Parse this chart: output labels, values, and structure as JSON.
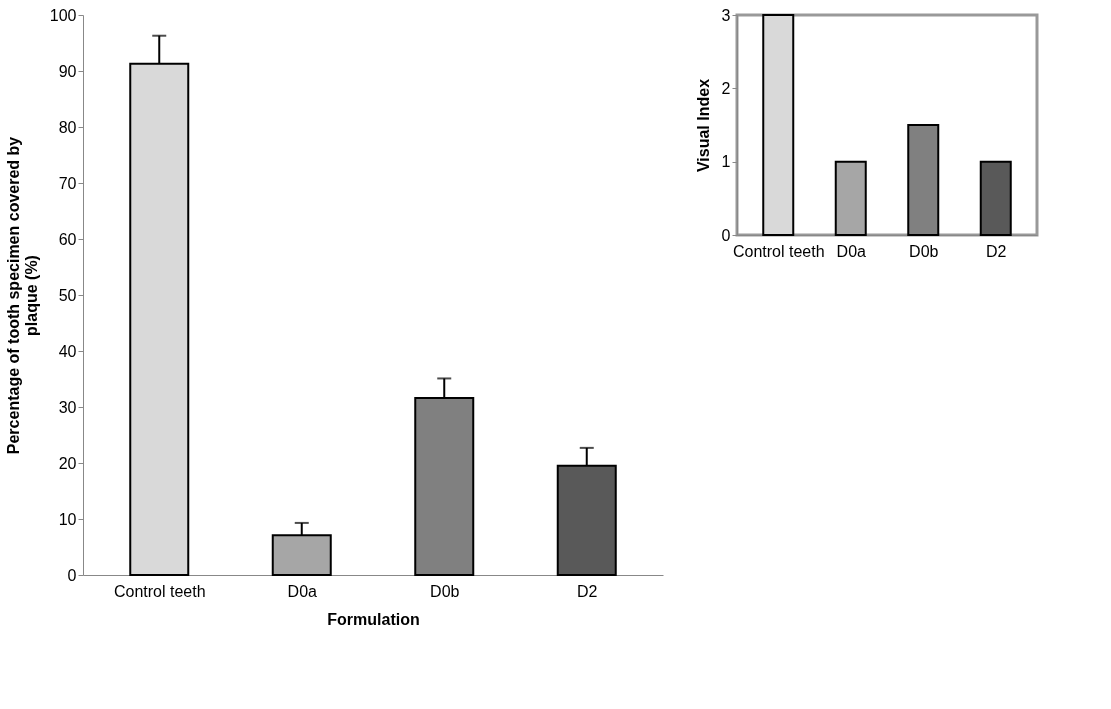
{
  "chart_data": [
    {
      "type": "bar",
      "xlabel": "Formulation",
      "ylabel": "Percentage of tooth specimen covered by plaque (%)",
      "categories": [
        "Control teeth",
        "D0a",
        "D0b",
        "D2"
      ],
      "values": [
        91.3,
        7.1,
        31.6,
        19.5
      ],
      "colors": [
        "#d9d9d9",
        "#a6a6a6",
        "#808080",
        "#595959"
      ],
      "errors": [
        [
          91.3,
          96.3
        ],
        [
          7.1,
          9.3
        ],
        [
          31.6,
          35.1
        ],
        [
          19.5,
          22.7
        ]
      ],
      "ylim": [
        0,
        100
      ],
      "yticks": [
        0,
        10,
        20,
        30,
        40,
        50,
        60,
        70,
        80,
        90,
        100
      ],
      "grid": false
    },
    {
      "type": "bar",
      "ylabel": "Visual Index",
      "categories": [
        "Control teeth",
        "D0a",
        "D0b",
        "D2"
      ],
      "values": [
        3,
        1,
        1.5,
        1
      ],
      "colors": [
        "#d9d9d9",
        "#a6a6a6",
        "#808080",
        "#595959"
      ],
      "ylim": [
        0,
        3
      ],
      "yticks": [
        0,
        1,
        2,
        3
      ],
      "grid": false
    }
  ]
}
